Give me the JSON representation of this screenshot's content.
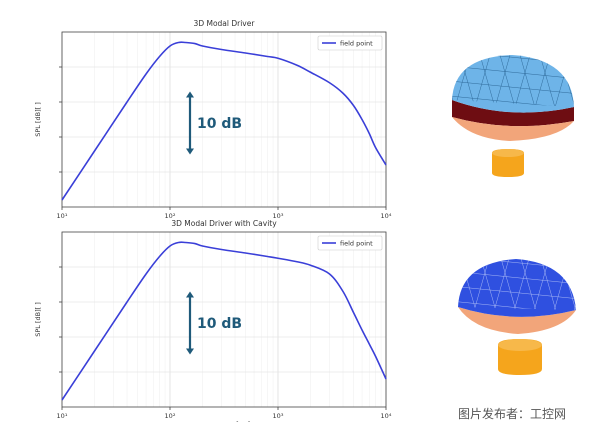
{
  "chart_data": [
    {
      "type": "line",
      "title": "3D Modal Driver",
      "xlabel": "",
      "ylabel": "SPL [dB][ ]",
      "xscale": "log",
      "xlim": [
        10,
        10000
      ],
      "ylim": [
        0,
        50
      ],
      "xtick_labels": [
        "10¹",
        "10²",
        "10³",
        "10⁴"
      ],
      "grid": true,
      "legend_position": "top-right",
      "annotation": "10 dB",
      "series": [
        {
          "name": "field point",
          "color": "#3a3fd8",
          "x": [
            10,
            20,
            40,
            60,
            80,
            100,
            120,
            140,
            170,
            200,
            300,
            500,
            800,
            1000,
            1500,
            2000,
            3000,
            4000,
            5000,
            6000,
            7000,
            8000,
            10000
          ],
          "y": [
            2,
            16,
            30,
            38,
            43,
            46,
            47,
            47,
            46.7,
            46,
            45,
            44,
            43,
            42.5,
            40.5,
            38.5,
            35.5,
            32.5,
            29,
            25,
            21,
            17,
            12
          ]
        }
      ]
    },
    {
      "type": "line",
      "title": "3D Modal Driver with Cavity",
      "xlabel": "Frequency [Hz]",
      "ylabel": "SPL [dB][ ]",
      "xscale": "log",
      "xlim": [
        10,
        10000
      ],
      "ylim": [
        0,
        50
      ],
      "xtick_labels": [
        "10¹",
        "10²",
        "10³",
        "10⁴"
      ],
      "grid": true,
      "legend_position": "top-right",
      "annotation": "10 dB",
      "series": [
        {
          "name": "field point",
          "color": "#3a3fd8",
          "x": [
            10,
            20,
            40,
            60,
            80,
            100,
            120,
            140,
            170,
            200,
            300,
            500,
            800,
            1000,
            1500,
            2000,
            3000,
            4000,
            5000,
            6000,
            7000,
            8000,
            10000
          ],
          "y": [
            2,
            16,
            30,
            38,
            43,
            46,
            47,
            47,
            46.7,
            46,
            45,
            44,
            43,
            42.5,
            41.5,
            40.5,
            38,
            33,
            27,
            22,
            18,
            14.5,
            8
          ]
        }
      ]
    }
  ],
  "watermark": "图片发布者：工控网"
}
